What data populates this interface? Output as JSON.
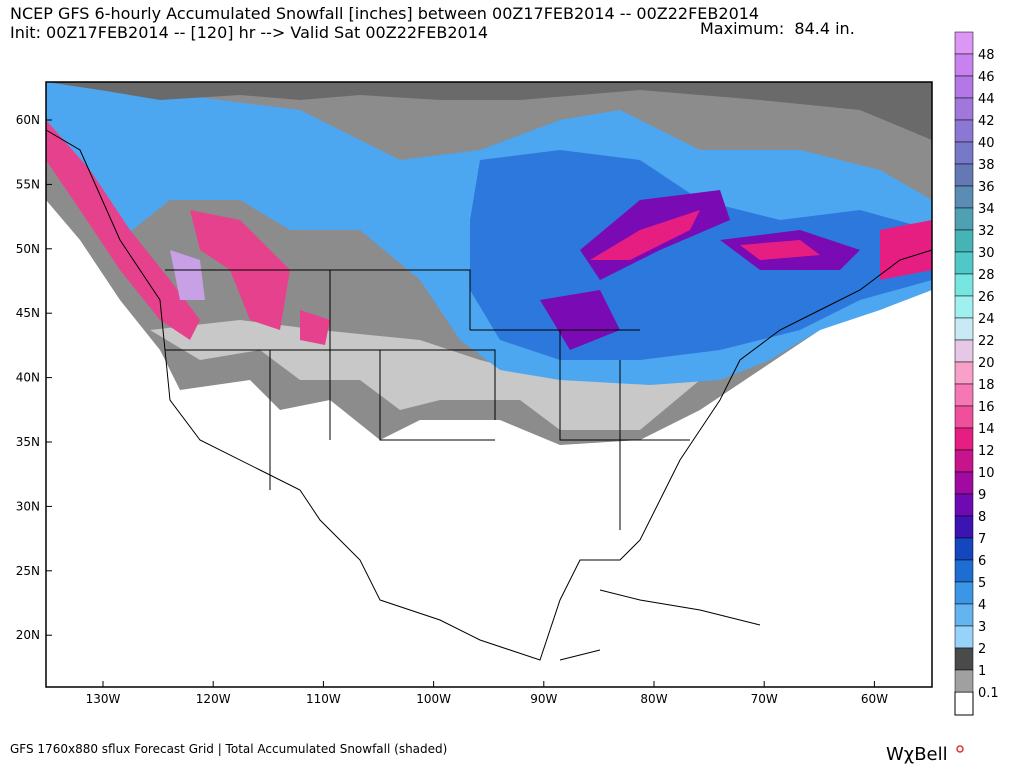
{
  "header": {
    "line1": "NCEP GFS 6-hourly Accumulated Snowfall [inches] between 00Z17FEB2014 -- 00Z22FEB2014",
    "line2": "Init: 00Z17FEB2014 -- [120] hr --> Valid Sat 00Z22FEB2014",
    "maximum": "Maximum:  84.4 in."
  },
  "map": {
    "lat_labels": [
      "60N",
      "55N",
      "50N",
      "45N",
      "40N",
      "35N",
      "30N",
      "25N",
      "20N"
    ],
    "lon_labels": [
      "130W",
      "120W",
      "110W",
      "100W",
      "90W",
      "80W",
      "70W",
      "60W"
    ]
  },
  "colorbar": {
    "labels": [
      "48",
      "46",
      "44",
      "42",
      "40",
      "38",
      "36",
      "34",
      "32",
      "30",
      "28",
      "26",
      "24",
      "22",
      "20",
      "18",
      "16",
      "14",
      "12",
      "10",
      "9",
      "8",
      "7",
      "6",
      "5",
      "4",
      "3",
      "2",
      "1",
      "0.1"
    ],
    "colors": [
      "#dc96f5",
      "#c882f0",
      "#b478e6",
      "#a078dc",
      "#8c78d2",
      "#7878c8",
      "#6478b4",
      "#5a8cb4",
      "#50a0b4",
      "#46b4b4",
      "#50c8c8",
      "#78e6e0",
      "#a0f0f0",
      "#c8eaf5",
      "#e6c8e6",
      "#f8a0c8",
      "#f578b4",
      "#f0509b",
      "#e61e82",
      "#c8148c",
      "#a00aa0",
      "#6e0ab4",
      "#3c14b4",
      "#1446be",
      "#1e6ed2",
      "#3c96e6",
      "#64b4f0",
      "#96d2fa",
      "#4a4a4a",
      "#a0a0a0"
    ]
  },
  "footer": {
    "left": "GFS 1760x880 sflux Forecast Grid | Total Accumulated Snowfall (shaded)",
    "logo": "WχBell"
  }
}
